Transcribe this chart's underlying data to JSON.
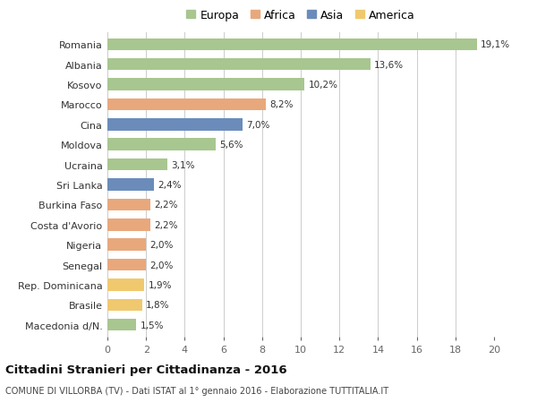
{
  "categories": [
    "Romania",
    "Albania",
    "Kosovo",
    "Marocco",
    "Cina",
    "Moldova",
    "Ucraina",
    "Sri Lanka",
    "Burkina Faso",
    "Costa d'Avorio",
    "Nigeria",
    "Senegal",
    "Rep. Dominicana",
    "Brasile",
    "Macedonia d/N."
  ],
  "values": [
    19.1,
    13.6,
    10.2,
    8.2,
    7.0,
    5.6,
    3.1,
    2.4,
    2.2,
    2.2,
    2.0,
    2.0,
    1.9,
    1.8,
    1.5
  ],
  "labels": [
    "19,1%",
    "13,6%",
    "10,2%",
    "8,2%",
    "7,0%",
    "5,6%",
    "3,1%",
    "2,4%",
    "2,2%",
    "2,2%",
    "2,0%",
    "2,0%",
    "1,9%",
    "1,8%",
    "1,5%"
  ],
  "continent": [
    "Europa",
    "Europa",
    "Europa",
    "Africa",
    "Asia",
    "Europa",
    "Europa",
    "Asia",
    "Africa",
    "Africa",
    "Africa",
    "Africa",
    "America",
    "America",
    "Europa"
  ],
  "colors": {
    "Europa": "#a8c68f",
    "Africa": "#e8a87c",
    "Asia": "#6b8cba",
    "America": "#f0c96e"
  },
  "legend_order": [
    "Europa",
    "Africa",
    "Asia",
    "America"
  ],
  "xlim": [
    0,
    20
  ],
  "xticks": [
    0,
    2,
    4,
    6,
    8,
    10,
    12,
    14,
    16,
    18,
    20
  ],
  "title": "Cittadini Stranieri per Cittadinanza - 2016",
  "subtitle": "COMUNE DI VILLORBA (TV) - Dati ISTAT al 1° gennaio 2016 - Elaborazione TUTTITALIA.IT",
  "background_color": "#ffffff",
  "grid_color": "#cccccc"
}
